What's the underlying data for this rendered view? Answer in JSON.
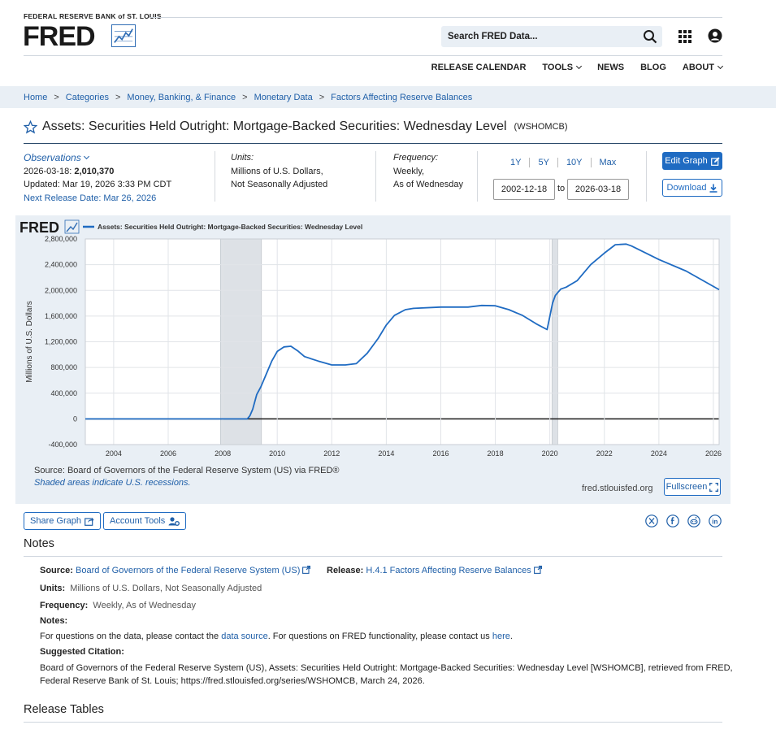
{
  "header": {
    "org": "FEDERAL RESERVE BANK of ST. LOUIS",
    "logo": "FRED",
    "search_placeholder": "Search FRED Data...",
    "nav": [
      "RELEASE CALENDAR",
      "TOOLS",
      "NEWS",
      "BLOG",
      "ABOUT"
    ]
  },
  "breadcrumb": [
    "Home",
    "Categories",
    "Money, Banking, & Finance",
    "Monetary Data",
    "Factors Affecting Reserve Balances"
  ],
  "series": {
    "title": "Assets: Securities Held Outright: Mortgage-Backed Securities: Wednesday Level",
    "code": "(WSHOMCB)"
  },
  "observations": {
    "label": "Observations",
    "latest_date": "2026-03-18:",
    "latest_value": "2,010,370",
    "updated": "Updated: Mar 19, 2026 3:33 PM CDT",
    "next_release": "Next Release Date: Mar 26, 2026"
  },
  "units": {
    "label": "Units:",
    "line1": "Millions of U.S. Dollars,",
    "line2": "Not Seasonally Adjusted"
  },
  "frequency": {
    "label": "Frequency:",
    "line1": "Weekly,",
    "line2": "As of Wednesday"
  },
  "range": {
    "buttons": [
      "1Y",
      "5Y",
      "10Y",
      "Max"
    ],
    "start": "2002-12-18",
    "to": "to",
    "end": "2026-03-18"
  },
  "actions": {
    "edit": "Edit Graph",
    "download": "Download"
  },
  "chart_data": {
    "type": "line",
    "legend_logo": "FRED",
    "series": [
      {
        "name": "Assets: Securities Held Outright: Mortgage-Backed Securities: Wednesday Level",
        "color": "#1f6bc2",
        "x": [
          2002.96,
          2008.9,
          2009.0,
          2009.1,
          2009.25,
          2009.4,
          2009.6,
          2009.8,
          2010.0,
          2010.25,
          2010.5,
          2010.75,
          2011.0,
          2011.5,
          2012.0,
          2012.5,
          2012.9,
          2013.3,
          2013.7,
          2014.0,
          2014.3,
          2014.7,
          2015.0,
          2016.0,
          2017.0,
          2017.5,
          2018.0,
          2018.5,
          2019.0,
          2019.5,
          2019.9,
          2020.1,
          2020.2,
          2020.4,
          2020.6,
          2021.0,
          2021.5,
          2022.0,
          2022.4,
          2022.8,
          2023.0,
          2024.0,
          2025.0,
          2026.21
        ],
        "values": [
          0,
          0,
          50000,
          150000,
          380000,
          500000,
          700000,
          900000,
          1050000,
          1120000,
          1130000,
          1060000,
          970000,
          900000,
          840000,
          840000,
          860000,
          1020000,
          1250000,
          1460000,
          1610000,
          1700000,
          1720000,
          1740000,
          1740000,
          1765000,
          1760000,
          1700000,
          1610000,
          1480000,
          1390000,
          1800000,
          1920000,
          2020000,
          2050000,
          2150000,
          2400000,
          2580000,
          2710000,
          2720000,
          2690000,
          2480000,
          2300000,
          2010370
        ]
      }
    ],
    "xlim": [
      2002.96,
      2026.21
    ],
    "ylim": [
      -400000,
      2800000
    ],
    "x_ticks": [
      "2004",
      "2006",
      "2008",
      "2010",
      "2012",
      "2014",
      "2016",
      "2018",
      "2020",
      "2022",
      "2024",
      "2026"
    ],
    "y_ticks": [
      "2,800,000",
      "2,400,000",
      "2,000,000",
      "1,600,000",
      "1,200,000",
      "800,000",
      "400,000",
      "0",
      "-400,000"
    ],
    "ylabel": "Millions of U.S. Dollars",
    "recessions": [
      [
        2007.92,
        2009.42
      ],
      [
        2020.08,
        2020.29
      ]
    ],
    "grid": true,
    "legend_position": "top-left"
  },
  "chart_footer": {
    "source": "Source: Board of Governors of the Federal Reserve System (US) via FRED®",
    "shaded": "Shaded areas indicate U.S. recessions.",
    "url": "fred.stlouisfed.org",
    "fullscreen": "Fullscreen"
  },
  "share": {
    "share_graph": "Share Graph",
    "account_tools": "Account Tools"
  },
  "notes": {
    "heading": "Notes",
    "source_label": "Source:",
    "source_value": "Board of Governors of the Federal Reserve System (US)",
    "release_label": "Release:",
    "release_value": "H.4.1 Factors Affecting Reserve Balances",
    "units_label": "Units:",
    "units_value": "Millions of U.S. Dollars, Not Seasonally Adjusted",
    "frequency_label": "Frequency:",
    "frequency_value": "Weekly, As of Wednesday",
    "notes_label": "Notes:",
    "q_part1": "For questions on the data, please contact the ",
    "q_link1": "data source",
    "q_part2": ". For questions on FRED functionality, please contact us ",
    "q_link2": "here",
    "q_part3": ".",
    "citation_label": "Suggested Citation:",
    "citation_line1": "Board of Governors of the Federal Reserve System (US), Assets: Securities Held Outright: Mortgage-Backed Securities: Wednesday Level [WSHOMCB], retrieved from FRED,",
    "citation_line2": "Federal Reserve Bank of St. Louis; https://fred.stlouisfed.org/series/WSHOMCB, March 24, 2026."
  },
  "release_tables": {
    "heading": "Release Tables"
  }
}
